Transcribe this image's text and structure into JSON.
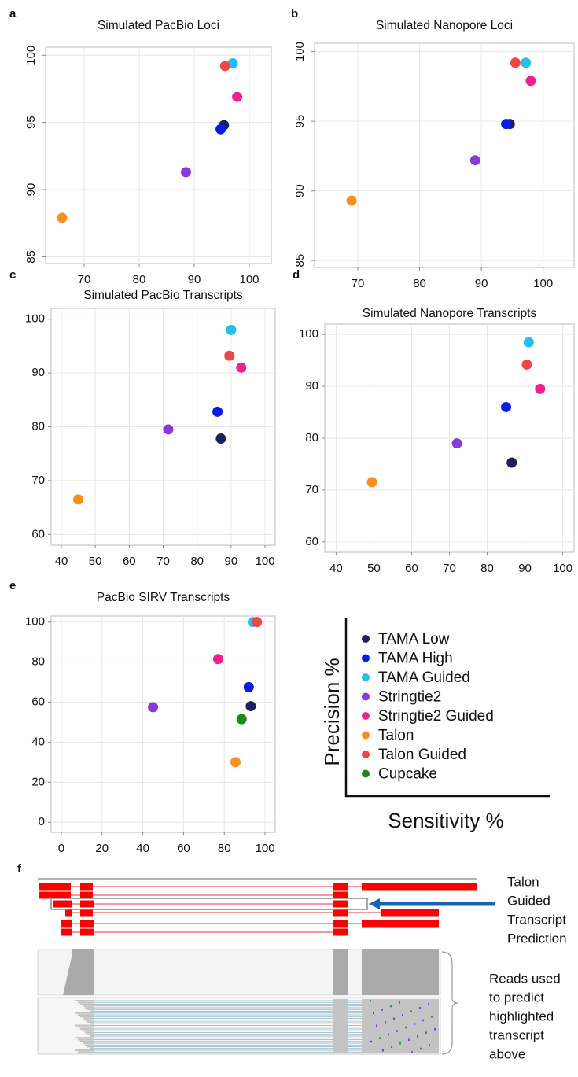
{
  "chart_data": [
    {
      "type": "scatter",
      "label": "a",
      "title": "Simulated PacBio Loci",
      "grid": true,
      "xlim": [
        63,
        104
      ],
      "xticks": [
        70,
        80,
        90,
        100
      ],
      "ylim": [
        84.5,
        100.6
      ],
      "yticks": [
        85,
        90,
        95,
        100
      ],
      "series": [
        {
          "name": "TAMA Low",
          "color": "#1b1f5e",
          "x": [
            95.4
          ],
          "values": [
            94.8
          ]
        },
        {
          "name": "TAMA High",
          "color": "#0b1ae6",
          "x": [
            94.8
          ],
          "values": [
            94.5
          ]
        },
        {
          "name": "TAMA Guided",
          "color": "#22bff0",
          "x": [
            97
          ],
          "values": [
            99.4
          ]
        },
        {
          "name": "Stringtie2",
          "color": "#8b3ad8",
          "x": [
            88.5
          ],
          "values": [
            91.3
          ]
        },
        {
          "name": "Stringtie2 Guided",
          "color": "#f0208f",
          "x": [
            97.8
          ],
          "values": [
            96.9
          ]
        },
        {
          "name": "Talon",
          "color": "#f7901e",
          "x": [
            66
          ],
          "values": [
            87.9
          ]
        },
        {
          "name": "Talon Guided",
          "color": "#ee4545",
          "x": [
            95.6
          ],
          "values": [
            99.2
          ]
        }
      ]
    },
    {
      "type": "scatter",
      "label": "b",
      "title": "Simulated Nanopore Loci",
      "grid": true,
      "xlim": [
        63,
        105
      ],
      "xticks": [
        70,
        80,
        90,
        100
      ],
      "ylim": [
        84.5,
        100.6
      ],
      "yticks": [
        85,
        90,
        95,
        100
      ],
      "series": [
        {
          "name": "TAMA Low",
          "color": "#1b1f5e",
          "x": [
            94.6
          ],
          "values": [
            94.8
          ]
        },
        {
          "name": "TAMA High",
          "color": "#0b1ae6",
          "x": [
            94
          ],
          "values": [
            94.8
          ]
        },
        {
          "name": "TAMA Guided",
          "color": "#22bff0",
          "x": [
            97.2
          ],
          "values": [
            99.2
          ]
        },
        {
          "name": "Stringtie2",
          "color": "#8b3ad8",
          "x": [
            89
          ],
          "values": [
            92.2
          ]
        },
        {
          "name": "Stringtie2 Guided",
          "color": "#f0208f",
          "x": [
            98
          ],
          "values": [
            97.9
          ]
        },
        {
          "name": "Talon",
          "color": "#f7901e",
          "x": [
            69
          ],
          "values": [
            89.3
          ]
        },
        {
          "name": "Talon Guided",
          "color": "#ee4545",
          "x": [
            95.5
          ],
          "values": [
            99.2
          ]
        }
      ]
    },
    {
      "type": "scatter",
      "label": "c",
      "title": "Simulated PacBio Transcripts",
      "grid": true,
      "xlim": [
        37,
        103
      ],
      "xticks": [
        40,
        50,
        60,
        70,
        80,
        90,
        100
      ],
      "ylim": [
        58,
        102
      ],
      "yticks": [
        60,
        70,
        80,
        90,
        100
      ],
      "series": [
        {
          "name": "TAMA Low",
          "color": "#1b1f5e",
          "x": [
            87
          ],
          "values": [
            77.8
          ]
        },
        {
          "name": "TAMA High",
          "color": "#0b1ae6",
          "x": [
            86
          ],
          "values": [
            82.8
          ]
        },
        {
          "name": "TAMA Guided",
          "color": "#22bff0",
          "x": [
            90
          ],
          "values": [
            98
          ]
        },
        {
          "name": "Stringtie2",
          "color": "#8b3ad8",
          "x": [
            71.5
          ],
          "values": [
            79.5
          ]
        },
        {
          "name": "Stringtie2 Guided",
          "color": "#f0208f",
          "x": [
            93
          ],
          "values": [
            91
          ]
        },
        {
          "name": "Talon",
          "color": "#f7901e",
          "x": [
            45
          ],
          "values": [
            66.5
          ]
        },
        {
          "name": "Talon Guided",
          "color": "#ee4545",
          "x": [
            89.5
          ],
          "values": [
            93.2
          ]
        }
      ]
    },
    {
      "type": "scatter",
      "label": "d",
      "title": "Simulated Nanopore Transcripts",
      "grid": true,
      "xlim": [
        37,
        103
      ],
      "xticks": [
        40,
        50,
        60,
        70,
        80,
        90,
        100
      ],
      "ylim": [
        58,
        102
      ],
      "yticks": [
        60,
        70,
        80,
        90,
        100
      ],
      "series": [
        {
          "name": "TAMA Low",
          "color": "#1b1f5e",
          "x": [
            86.5
          ],
          "values": [
            75.3
          ]
        },
        {
          "name": "TAMA High",
          "color": "#0b1ae6",
          "x": [
            85
          ],
          "values": [
            86
          ]
        },
        {
          "name": "TAMA Guided",
          "color": "#22bff0",
          "x": [
            91
          ],
          "values": [
            98.5
          ]
        },
        {
          "name": "Stringtie2",
          "color": "#8b3ad8",
          "x": [
            72
          ],
          "values": [
            79
          ]
        },
        {
          "name": "Stringtie2 Guided",
          "color": "#f0208f",
          "x": [
            94
          ],
          "values": [
            89.5
          ]
        },
        {
          "name": "Talon",
          "color": "#f7901e",
          "x": [
            49.5
          ],
          "values": [
            71.5
          ]
        },
        {
          "name": "Talon Guided",
          "color": "#ee4545",
          "x": [
            90.5
          ],
          "values": [
            94.2
          ]
        }
      ]
    },
    {
      "type": "scatter",
      "label": "e",
      "title": "PacBio SIRV Transcripts",
      "grid": true,
      "xlim": [
        -5,
        105
      ],
      "xticks": [
        0,
        20,
        40,
        60,
        80,
        100
      ],
      "ylim": [
        -5,
        103
      ],
      "yticks": [
        0,
        20,
        40,
        60,
        80,
        100
      ],
      "series": [
        {
          "name": "TAMA Low",
          "color": "#1b1f5e",
          "x": [
            93
          ],
          "values": [
            58
          ]
        },
        {
          "name": "TAMA High",
          "color": "#0b1ae6",
          "x": [
            92
          ],
          "values": [
            67.5
          ]
        },
        {
          "name": "TAMA Guided",
          "color": "#22bff0",
          "x": [
            94
          ],
          "values": [
            100
          ]
        },
        {
          "name": "Stringtie2",
          "color": "#8b3ad8",
          "x": [
            45
          ],
          "values": [
            57.5
          ]
        },
        {
          "name": "Stringtie2 Guided",
          "color": "#f0208f",
          "x": [
            77
          ],
          "values": [
            81.5
          ]
        },
        {
          "name": "Talon",
          "color": "#f7901e",
          "x": [
            85.5
          ],
          "values": [
            30
          ]
        },
        {
          "name": "Talon Guided",
          "color": "#ee4545",
          "x": [
            96
          ],
          "values": [
            100
          ]
        },
        {
          "name": "Cupcake",
          "color": "#1a8a1a",
          "x": [
            88.5
          ],
          "values": [
            51.5
          ]
        }
      ]
    }
  ],
  "axes_key": {
    "y_label": "Precision %",
    "x_label": "Sensitivity %"
  },
  "panel_f": {
    "label": "f",
    "annotation": [
      "Talon",
      "Guided",
      "Transcript",
      "Prediction"
    ],
    "reads_note": [
      "Reads used",
      "to predict",
      "highlighted",
      "transcript",
      "above"
    ]
  }
}
